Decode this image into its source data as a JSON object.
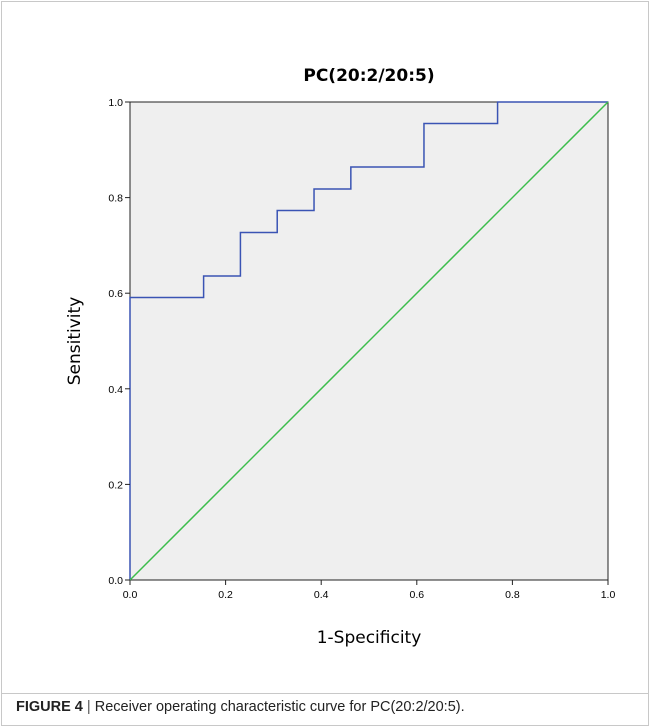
{
  "chart_data": {
    "type": "line",
    "title": "PC(20:2/20:5)",
    "xlabel": "1-Specificity",
    "ylabel": "Sensitivity",
    "xlim": [
      0,
      1
    ],
    "ylim": [
      0,
      1
    ],
    "x_ticks": [
      "0.0",
      "0.2",
      "0.4",
      "0.6",
      "0.8",
      "1.0"
    ],
    "y_ticks": [
      "0.0",
      "0.2",
      "0.4",
      "0.6",
      "0.8",
      "1.0"
    ],
    "grid": false,
    "series": [
      {
        "color": "#3a54b4",
        "x": [
          0.0,
          0.0,
          0.154,
          0.154,
          0.231,
          0.231,
          0.308,
          0.308,
          0.385,
          0.385,
          0.462,
          0.462,
          0.615,
          0.615,
          0.769,
          0.769,
          1.0
        ],
        "y": [
          0.0,
          0.591,
          0.591,
          0.636,
          0.636,
          0.727,
          0.727,
          0.773,
          0.773,
          0.818,
          0.818,
          0.864,
          0.864,
          0.955,
          0.955,
          1.0,
          1.0
        ]
      },
      {
        "color": "#3cbd4c",
        "x": [
          0.0,
          1.0
        ],
        "y": [
          0.0,
          1.0
        ]
      }
    ],
    "plot_background": "#efefef"
  },
  "caption": {
    "label": "FIGURE 4",
    "separator": "|",
    "text": "Receiver operating characteristic curve for PC(20:2/20:5)."
  }
}
